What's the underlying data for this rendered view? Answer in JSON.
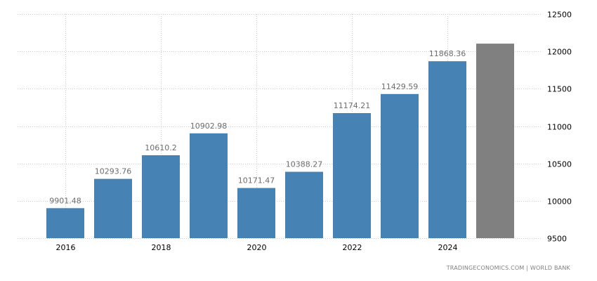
{
  "chart_data": {
    "type": "bar",
    "title": "",
    "xlabel": "",
    "ylabel": "",
    "categories": [
      "2016",
      "2017",
      "2018",
      "2019",
      "2020",
      "2021",
      "2022",
      "2023",
      "2024",
      "2025"
    ],
    "values": [
      9901.48,
      10293.76,
      10610.2,
      10902.98,
      10171.47,
      10388.27,
      11174.21,
      11429.59,
      11868.36,
      12104
    ],
    "value_labels": [
      "9901.48",
      "10293.76",
      "10610.2",
      "10902.98",
      "10171.47",
      "10388.27",
      "11174.21",
      "11429.59",
      "11868.36",
      ""
    ],
    "bar_colors": [
      "#4682b4",
      "#4682b4",
      "#4682b4",
      "#4682b4",
      "#4682b4",
      "#4682b4",
      "#4682b4",
      "#4682b4",
      "#4682b4",
      "#808080"
    ],
    "x_tick_labels": [
      "2016",
      "2018",
      "2020",
      "2022",
      "2024"
    ],
    "y_tick_labels": [
      "12500",
      "12000",
      "11500",
      "11000",
      "10500",
      "10000",
      "9500"
    ],
    "ylim": [
      9500,
      12500
    ],
    "y_axis_position": "right",
    "grid": true,
    "legend": null
  },
  "footer": {
    "source": "TRADINGECONOMICS.COM | WORLD BANK"
  },
  "colors": {
    "primary_bar": "#4682b4",
    "forecast_bar": "#808080",
    "grid": "#cccccc"
  }
}
